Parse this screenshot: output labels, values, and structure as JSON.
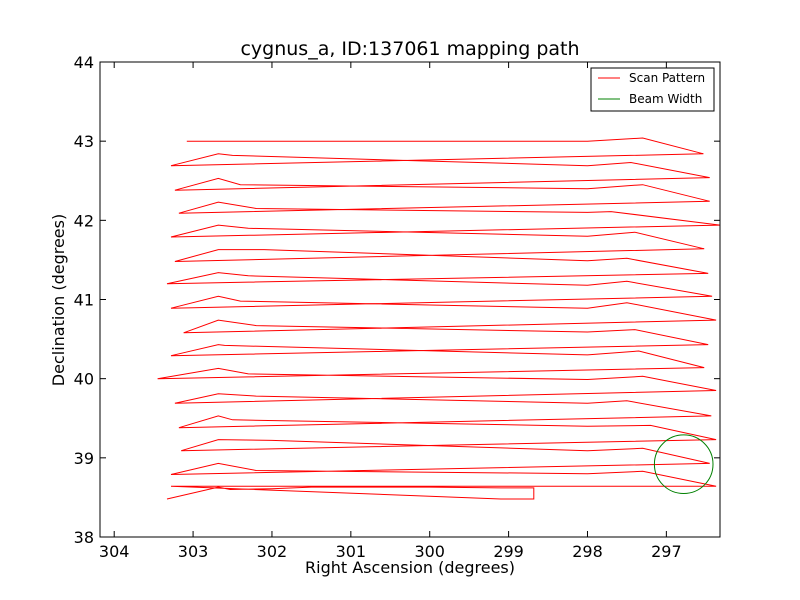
{
  "chart_data": {
    "type": "line",
    "title": "cygnus_a, ID:137061 mapping path",
    "xlabel": "Right Ascension (degrees)",
    "ylabel": "Declination (degrees)",
    "xlim": [
      304.18,
      296.32
    ],
    "ylim": [
      38,
      44
    ],
    "x_ticks": [
      304,
      303,
      302,
      301,
      300,
      299,
      298,
      297
    ],
    "y_ticks": [
      38,
      39,
      40,
      41,
      42,
      43,
      44
    ],
    "grid": false,
    "legend_position": "top-right",
    "series": [
      {
        "name": "Scan Pattern",
        "color": "#ff0000",
        "points": [
          [
            303.33,
            38.48
          ],
          [
            302.68,
            38.63
          ],
          [
            302.53,
            38.6
          ],
          [
            302.0,
            38.61
          ],
          [
            301.5,
            38.63
          ],
          [
            300.0,
            38.63
          ],
          [
            299.1,
            38.62
          ],
          [
            298.9,
            38.62
          ],
          [
            298.68,
            38.62
          ],
          [
            298.68,
            38.48
          ],
          [
            299.1,
            38.48
          ],
          [
            303.28,
            38.64
          ],
          [
            296.37,
            38.64
          ],
          [
            297.3,
            38.83
          ],
          [
            298.0,
            38.8
          ],
          [
            302.2,
            38.84
          ],
          [
            302.68,
            38.93
          ],
          [
            303.28,
            38.79
          ],
          [
            296.45,
            38.93
          ],
          [
            297.3,
            39.12
          ],
          [
            298.0,
            39.09
          ],
          [
            302.0,
            39.22
          ],
          [
            302.68,
            39.23
          ],
          [
            303.15,
            39.09
          ],
          [
            296.37,
            39.23
          ],
          [
            297.2,
            39.41
          ],
          [
            298.0,
            39.4
          ],
          [
            302.5,
            39.48
          ],
          [
            302.68,
            39.53
          ],
          [
            303.18,
            39.38
          ],
          [
            296.43,
            39.53
          ],
          [
            297.5,
            39.72
          ],
          [
            298.0,
            39.69
          ],
          [
            302.2,
            39.78
          ],
          [
            302.68,
            39.81
          ],
          [
            303.23,
            39.69
          ],
          [
            296.37,
            39.85
          ],
          [
            297.3,
            40.03
          ],
          [
            298.0,
            39.99
          ],
          [
            302.3,
            40.06
          ],
          [
            302.68,
            40.13
          ],
          [
            303.45,
            40.0
          ],
          [
            296.52,
            40.14
          ],
          [
            297.35,
            40.35
          ],
          [
            298.0,
            40.3
          ],
          [
            302.6,
            40.42
          ],
          [
            302.68,
            40.43
          ],
          [
            303.28,
            40.29
          ],
          [
            296.47,
            40.43
          ],
          [
            297.4,
            40.62
          ],
          [
            298.0,
            40.59
          ],
          [
            302.2,
            40.67
          ],
          [
            302.68,
            40.74
          ],
          [
            303.12,
            40.58
          ],
          [
            296.37,
            40.74
          ],
          [
            297.5,
            40.96
          ],
          [
            298.0,
            40.89
          ],
          [
            302.4,
            40.98
          ],
          [
            302.68,
            41.04
          ],
          [
            303.28,
            40.89
          ],
          [
            296.42,
            41.04
          ],
          [
            297.5,
            41.23
          ],
          [
            298.0,
            41.18
          ],
          [
            302.3,
            41.3
          ],
          [
            302.68,
            41.34
          ],
          [
            303.33,
            41.2
          ],
          [
            296.47,
            41.33
          ],
          [
            297.5,
            41.52
          ],
          [
            298.0,
            41.49
          ],
          [
            302.1,
            41.63
          ],
          [
            302.68,
            41.63
          ],
          [
            303.23,
            41.48
          ],
          [
            296.52,
            41.64
          ],
          [
            297.4,
            41.85
          ],
          [
            298.0,
            41.8
          ],
          [
            302.3,
            41.9
          ],
          [
            302.68,
            41.94
          ],
          [
            303.28,
            41.79
          ],
          [
            296.32,
            41.94
          ],
          [
            297.7,
            42.11
          ],
          [
            298.0,
            42.1
          ],
          [
            302.2,
            42.15
          ],
          [
            302.68,
            42.23
          ],
          [
            303.18,
            42.09
          ],
          [
            296.45,
            42.24
          ],
          [
            297.3,
            42.45
          ],
          [
            298.0,
            42.4
          ],
          [
            302.4,
            42.45
          ],
          [
            302.68,
            42.53
          ],
          [
            303.23,
            42.38
          ],
          [
            296.45,
            42.54
          ],
          [
            297.45,
            42.73
          ],
          [
            298.0,
            42.69
          ],
          [
            302.5,
            42.82
          ],
          [
            302.68,
            42.84
          ],
          [
            303.28,
            42.69
          ],
          [
            296.53,
            42.84
          ],
          [
            297.3,
            43.04
          ],
          [
            298.0,
            43.0
          ],
          [
            303.08,
            43.0
          ]
        ]
      },
      {
        "name": "Beam Width",
        "color": "#008000",
        "center": [
          296.78,
          38.92
        ],
        "radius": 0.37
      }
    ]
  },
  "legend": {
    "items": [
      {
        "label": "Scan Pattern",
        "color": "#ff0000"
      },
      {
        "label": "Beam Width",
        "color": "#008000"
      }
    ]
  }
}
